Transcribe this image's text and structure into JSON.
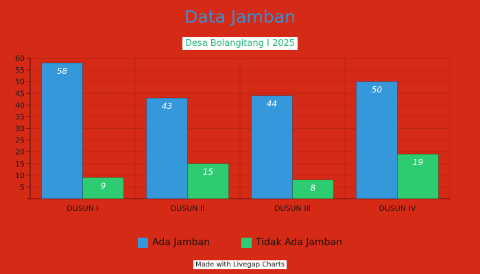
{
  "colors": {
    "background": "#D52A16",
    "series1": "#3498DB",
    "series2": "#2ECC71"
  },
  "chart_data": {
    "type": "bar",
    "title": "Data Jamban",
    "subtitle": "Desa Bolangitang I 2025",
    "categories": [
      "DUSUN I",
      "DUSUN II",
      "DUSUN III",
      "DUSUN IV"
    ],
    "series": [
      {
        "name": "Ada Jamban",
        "values": [
          58,
          43,
          44,
          50
        ]
      },
      {
        "name": "Tidak Ada Jamban",
        "values": [
          9,
          15,
          8,
          19
        ]
      }
    ],
    "ylim": [
      0,
      60
    ],
    "yticks": [
      5,
      10,
      15,
      20,
      25,
      30,
      35,
      40,
      45,
      50,
      55,
      60
    ],
    "grid": true,
    "legend_position": "bottom",
    "xlabel": "",
    "ylabel": ""
  },
  "footer": {
    "credit": "Made with Livegap Charts"
  }
}
